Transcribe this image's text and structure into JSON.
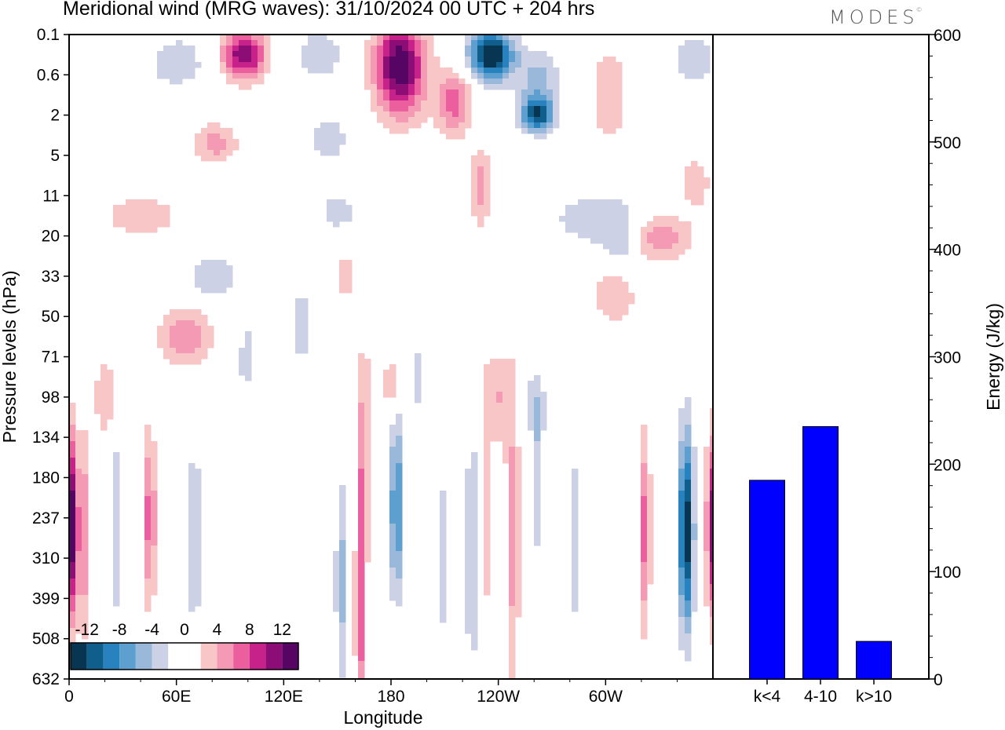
{
  "title": "Meridional wind (MRG waves):  31/10/2024  00 UTC  + 204 hrs",
  "brand": "MODES",
  "brand_mark": "©",
  "chart_data": [
    {
      "type": "heatmap",
      "xlabel": "Longitude",
      "ylabel": "Pressure levels (hPa)",
      "x_ticks": [
        "0",
        "60E",
        "120E",
        "180",
        "120W",
        "60W"
      ],
      "y_ticks": [
        "0.1",
        "0.6",
        "2",
        "5",
        "11",
        "20",
        "33",
        "50",
        "71",
        "98",
        "134",
        "180",
        "237",
        "310",
        "399",
        "508",
        "632"
      ],
      "colorbar": {
        "labels": [
          "-12",
          "-8",
          "-4",
          "0",
          "4",
          "8",
          "12"
        ],
        "colors": [
          "#083552",
          "#0f5e8c",
          "#2782bd",
          "#5d9fcf",
          "#9ab9da",
          "#cdd1e5",
          "#ffffff",
          "#ffffff",
          "#f8c6c6",
          "#f59ab5",
          "#eb5f9e",
          "#c7228a",
          "#8c0d75",
          "#570564"
        ]
      },
      "blobs": [
        {
          "lon": 2,
          "lev": 12.2,
          "rx": 2.5,
          "ry": 2.2,
          "v": 14
        },
        {
          "lon": 8,
          "lev": 12.4,
          "rx": 4,
          "ry": 2.5,
          "v": 6
        },
        {
          "lon": 27,
          "lev": 12.2,
          "rx": 3,
          "ry": 2.5,
          "v": -4
        },
        {
          "lon": 45,
          "lev": 12.0,
          "rx": 3.5,
          "ry": 2.2,
          "v": 7
        },
        {
          "lon": 70,
          "lev": 12.5,
          "rx": 4,
          "ry": 2.5,
          "v": -4
        },
        {
          "lon": 98,
          "lev": 12.5,
          "rx": 3,
          "ry": 3,
          "v": 3
        },
        {
          "lon": 152,
          "lev": 13.6,
          "rx": 3,
          "ry": 2.6,
          "v": -5
        },
        {
          "lon": 163,
          "lev": 14.2,
          "rx": 3,
          "ry": 3.5,
          "v": 7
        },
        {
          "lon": 165,
          "lev": 10.0,
          "rx": 3,
          "ry": 2.5,
          "v": 5
        },
        {
          "lon": 183,
          "lev": 11.7,
          "rx": 3.5,
          "ry": 2.2,
          "v": -9
        },
        {
          "lon": 210,
          "lev": 13.0,
          "rx": 3,
          "ry": 3,
          "v": -3
        },
        {
          "lon": 225,
          "lev": 12.8,
          "rx": 3,
          "ry": 3,
          "v": -5
        },
        {
          "lon": 248,
          "lev": 12.3,
          "rx": 4,
          "ry": 4,
          "v": 5
        },
        {
          "lon": 262,
          "lev": 11.0,
          "rx": 3,
          "ry": 2,
          "v": -4
        },
        {
          "lon": 282,
          "lev": 12.5,
          "rx": 3,
          "ry": 3,
          "v": -3
        },
        {
          "lon": 322,
          "lev": 12.3,
          "rx": 3,
          "ry": 2.4,
          "v": 7
        },
        {
          "lon": 345,
          "lev": 12.3,
          "rx": 4,
          "ry": 2.4,
          "v": -14
        },
        {
          "lon": 360,
          "lev": 12.2,
          "rx": 3.5,
          "ry": 2.2,
          "v": 12
        },
        {
          "lon": 98,
          "lev": 0.5,
          "rx": 12,
          "ry": 0.6,
          "v": 12
        },
        {
          "lon": 60,
          "lev": 0.7,
          "rx": 15,
          "ry": 0.6,
          "v": -4
        },
        {
          "lon": 140,
          "lev": 0.5,
          "rx": 12,
          "ry": 0.6,
          "v": -4
        },
        {
          "lon": 185,
          "lev": 0.8,
          "rx": 14,
          "ry": 1.2,
          "v": 14
        },
        {
          "lon": 215,
          "lev": 1.7,
          "rx": 10,
          "ry": 0.8,
          "v": 7
        },
        {
          "lon": 236,
          "lev": 0.5,
          "rx": 12,
          "ry": 0.6,
          "v": -15
        },
        {
          "lon": 262,
          "lev": 1.2,
          "rx": 12,
          "ry": 0.8,
          "v": -5
        },
        {
          "lon": 262,
          "lev": 2.0,
          "rx": 9,
          "ry": 0.4,
          "v": -11
        },
        {
          "lon": 302,
          "lev": 1.5,
          "rx": 10,
          "ry": 1.2,
          "v": 4
        },
        {
          "lon": 350,
          "lev": 0.6,
          "rx": 12,
          "ry": 0.6,
          "v": -4
        },
        {
          "lon": 82,
          "lev": 2.7,
          "rx": 12,
          "ry": 0.5,
          "v": 5
        },
        {
          "lon": 145,
          "lev": 2.6,
          "rx": 10,
          "ry": 0.5,
          "v": -4
        },
        {
          "lon": 230,
          "lev": 3.8,
          "rx": 6,
          "ry": 1.0,
          "v": 5
        },
        {
          "lon": 300,
          "lev": 4.6,
          "rx": 30,
          "ry": 0.7,
          "v": -4
        },
        {
          "lon": 325,
          "lev": 5.0,
          "rx": 22,
          "ry": 0.6,
          "v": 7
        },
        {
          "lon": 350,
          "lev": 3.7,
          "rx": 8,
          "ry": 0.6,
          "v": 4
        },
        {
          "lon": 310,
          "lev": 5.2,
          "rx": 12,
          "ry": 0.6,
          "v": -5
        },
        {
          "lon": 65,
          "lev": 7.5,
          "rx": 14,
          "ry": 0.7,
          "v": 6
        },
        {
          "lon": 80,
          "lev": 6.0,
          "rx": 14,
          "ry": 0.5,
          "v": -4
        },
        {
          "lon": 40,
          "lev": 4.5,
          "rx": 20,
          "ry": 0.5,
          "v": 4
        },
        {
          "lon": 150,
          "lev": 4.4,
          "rx": 12,
          "ry": 0.5,
          "v": -3
        },
        {
          "lon": 305,
          "lev": 6.5,
          "rx": 12,
          "ry": 0.7,
          "v": 4
        },
        {
          "lon": 155,
          "lev": 6.0,
          "rx": 4,
          "ry": 0.6,
          "v": 4
        },
        {
          "lon": 20,
          "lev": 9.0,
          "rx": 6,
          "ry": 1.0,
          "v": 4
        },
        {
          "lon": 195,
          "lev": 8.5,
          "rx": 5,
          "ry": 1.0,
          "v": -3
        },
        {
          "lon": 240,
          "lev": 9.0,
          "rx": 6,
          "ry": 1.2,
          "v": 4
        },
        {
          "lon": 260,
          "lev": 9.2,
          "rx": 8,
          "ry": 0.8,
          "v": -3
        },
        {
          "lon": 130,
          "lev": 7.2,
          "rx": 6,
          "ry": 1.2,
          "v": -3
        },
        {
          "lon": 100,
          "lev": 8.0,
          "rx": 5,
          "ry": 1.0,
          "v": -3
        },
        {
          "lon": 180,
          "lev": 8.7,
          "rx": 4,
          "ry": 0.8,
          "v": 4
        },
        {
          "lon": 95,
          "lev": 10.8,
          "rx": 3,
          "ry": 2.5,
          "v": -3
        },
        {
          "lon": 233,
          "lev": 11.5,
          "rx": 3,
          "ry": 3,
          "v": 4
        }
      ]
    },
    {
      "type": "bar",
      "categories": [
        "k<4",
        "4-10",
        "k>10"
      ],
      "values": [
        185,
        235,
        35
      ],
      "ylabel": "Energy (J/kg)",
      "ylim": [
        0,
        600
      ],
      "y_ticks": [
        0,
        100,
        200,
        300,
        400,
        500,
        600
      ],
      "bar_color": "#0000ff"
    }
  ]
}
